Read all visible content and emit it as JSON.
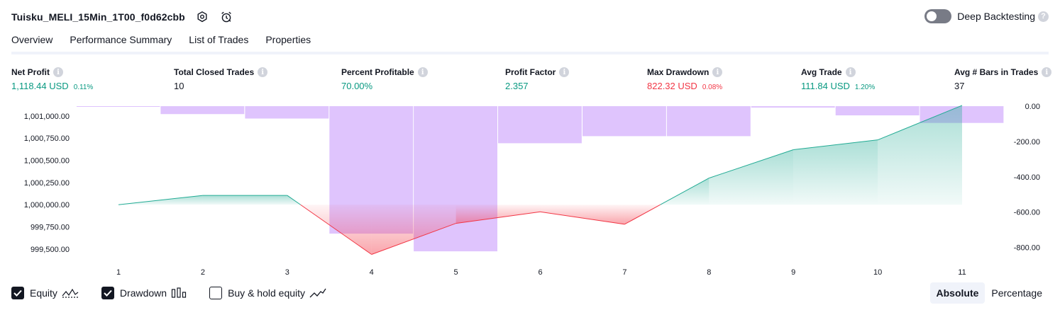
{
  "header": {
    "title": "Tuisku_MELI_15Min_1T00_f0d62cbb",
    "deep_backtesting_label": "Deep Backtesting",
    "deep_backtesting_on": false
  },
  "tabs": [
    {
      "label": "Overview",
      "active": true
    },
    {
      "label": "Performance Summary",
      "active": false
    },
    {
      "label": "List of Trades",
      "active": false
    },
    {
      "label": "Properties",
      "active": false
    }
  ],
  "metrics": [
    {
      "label": "Net Profit",
      "value": "1,118.44 USD",
      "pct": "0.11%",
      "color": "#089981"
    },
    {
      "label": "Total Closed Trades",
      "value": "10",
      "pct": "",
      "color": "#131722"
    },
    {
      "label": "Percent Profitable",
      "value": "70.00%",
      "pct": "",
      "color": "#089981"
    },
    {
      "label": "Profit Factor",
      "value": "2.357",
      "pct": "",
      "color": "#089981"
    },
    {
      "label": "Max Drawdown",
      "value": "822.32 USD",
      "pct": "0.08%",
      "color": "#f23645"
    },
    {
      "label": "Avg Trade",
      "value": "111.84 USD",
      "pct": "1.20%",
      "color": "#089981"
    },
    {
      "label": "Avg # Bars in Trades",
      "value": "37",
      "pct": "",
      "color": "#131722"
    }
  ],
  "legend": {
    "equity_label": "Equity",
    "equity_checked": true,
    "drawdown_label": "Drawdown",
    "drawdown_checked": true,
    "buyhold_label": "Buy & hold equity",
    "buyhold_checked": false
  },
  "mode": {
    "absolute_label": "Absolute",
    "percentage_label": "Percentage",
    "active": "absolute"
  },
  "chart_data": {
    "type": "bar",
    "categories": [
      "1",
      "2",
      "3",
      "4",
      "5",
      "6",
      "7",
      "8",
      "9",
      "10",
      "11"
    ],
    "x": [
      1,
      2,
      3,
      4,
      5,
      6,
      7,
      8,
      9,
      10,
      11
    ],
    "left_ticks": [
      "1,001,000.00",
      "1,000,750.00",
      "1,000,500.00",
      "1,000,250.00",
      "1,000,000.00",
      "999,750.00",
      "999,500.00"
    ],
    "left_tick_values": [
      1001000,
      1000750,
      1000500,
      1000250,
      1000000,
      999750,
      999500
    ],
    "right_ticks": [
      "0.00",
      "-200.00",
      "-400.00",
      "-600.00",
      "-800.00"
    ],
    "right_tick_values": [
      0,
      -200,
      -400,
      -600,
      -800
    ],
    "left_ylim": [
      999420,
      1001110
    ],
    "right_ylim": [
      -850,
      0
    ],
    "series": [
      {
        "name": "Equity",
        "axis": "left",
        "values": [
          1000000,
          1000105,
          1000105,
          999440,
          999790,
          999920,
          999780,
          1000300,
          1000620,
          1000730,
          1001118.44
        ]
      },
      {
        "name": "Drawdown",
        "axis": "right",
        "values": [
          0,
          -45,
          -70,
          -722,
          -822.32,
          -210,
          -170,
          -170,
          -8,
          -52,
          -95
        ]
      }
    ],
    "baseline": 1000000,
    "colors": {
      "equity_up": "#22ab94",
      "equity_down": "#f23645",
      "drawdown": "#c594fc"
    },
    "grid": false,
    "legend_position": "bottom-left"
  }
}
